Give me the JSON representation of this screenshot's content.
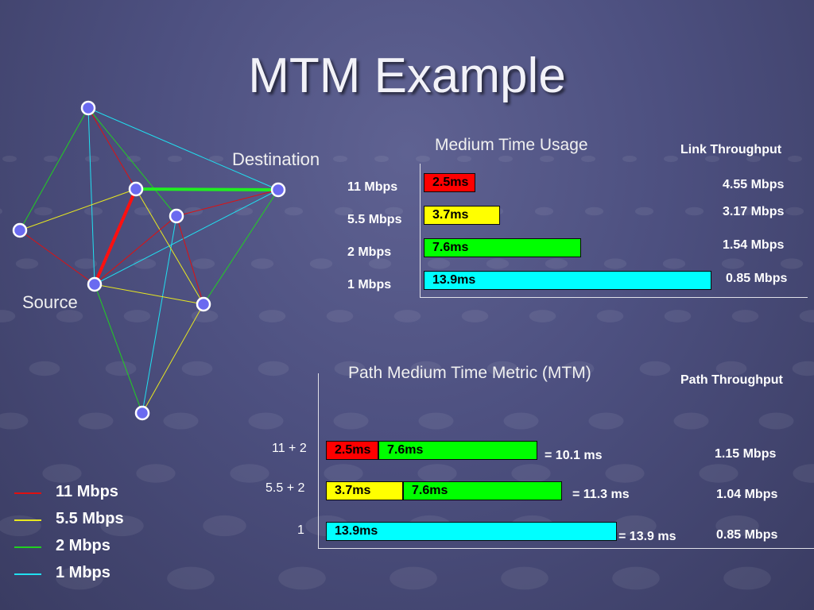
{
  "title": "MTM Example",
  "graph": {
    "destination_label": "Destination",
    "source_label": "Source"
  },
  "legend": [
    {
      "label": "11 Mbps",
      "color": "#e01010"
    },
    {
      "label": "5.5 Mbps",
      "color": "#e8e820"
    },
    {
      "label": "2 Mbps",
      "color": "#20d020"
    },
    {
      "label": "1 Mbps",
      "color": "#20e0f0"
    }
  ],
  "medium_time_usage": {
    "title": "Medium Time Usage",
    "throughput_header": "Link Throughput",
    "rows": [
      {
        "rate": "11 Mbps",
        "bar_label": "2.5ms",
        "value_ms": 2.5,
        "color": "#ff0000",
        "throughput": "4.55 Mbps"
      },
      {
        "rate": "5.5 Mbps",
        "bar_label": "3.7ms",
        "value_ms": 3.7,
        "color": "#ffff00",
        "throughput": "3.17 Mbps"
      },
      {
        "rate": "2 Mbps",
        "bar_label": "7.6ms",
        "value_ms": 7.6,
        "color": "#00ff00",
        "throughput": "1.54 Mbps"
      },
      {
        "rate": "1 Mbps",
        "bar_label": "13.9ms",
        "value_ms": 13.9,
        "color": "#00ffff",
        "throughput": "0.85 Mbps"
      }
    ]
  },
  "path_mtm": {
    "title": "Path Medium Time Metric (MTM)",
    "throughput_header": "Path Throughput",
    "rows": [
      {
        "label": "11 + 2",
        "segments": [
          {
            "text": "2.5ms",
            "value_ms": 2.5,
            "color": "#ff0000"
          },
          {
            "text": "7.6ms",
            "value_ms": 7.6,
            "color": "#00ff00"
          }
        ],
        "total": "= 10.1 ms",
        "throughput": "1.15 Mbps"
      },
      {
        "label": "5.5 + 2",
        "segments": [
          {
            "text": "3.7ms",
            "value_ms": 3.7,
            "color": "#ffff00"
          },
          {
            "text": "7.6ms",
            "value_ms": 7.6,
            "color": "#00ff00"
          }
        ],
        "total": "= 11.3 ms",
        "throughput": "1.04 Mbps"
      },
      {
        "label": "1",
        "segments": [
          {
            "text": "13.9ms",
            "value_ms": 13.9,
            "color": "#00ffff"
          }
        ],
        "total": "= 13.9 ms",
        "throughput": "0.85 Mbps"
      }
    ]
  }
}
